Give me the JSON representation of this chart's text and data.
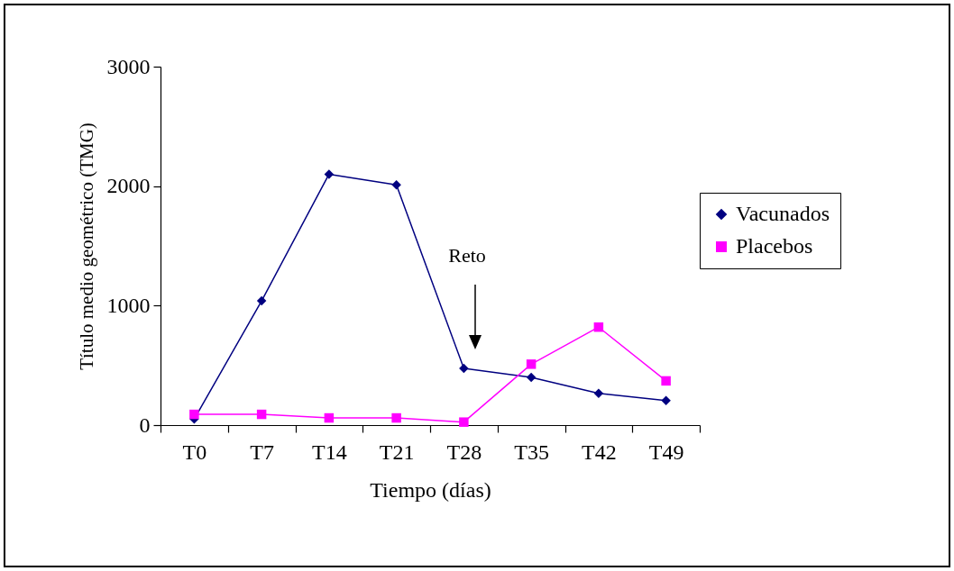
{
  "chart_data": {
    "type": "line",
    "xlabel": "Tiempo (días)",
    "ylabel": "Título medio geométrico (TMG)",
    "categories": [
      "T0",
      "T7",
      "T14",
      "T21",
      "T28",
      "T35",
      "T42",
      "T49"
    ],
    "ylim": [
      0,
      3000
    ],
    "yticks": [
      0,
      1000,
      2000,
      3000
    ],
    "grid": false,
    "legend": "right",
    "line_style": "solid",
    "annotations": [
      "Reto"
    ],
    "series": [
      {
        "name": "Vacunados",
        "color": "#000080",
        "marker": "diamond",
        "values": [
          50,
          1040,
          2100,
          2010,
          475,
          400,
          265,
          205
        ]
      },
      {
        "name": "Placebos",
        "color": "#ff00ff",
        "marker": "square",
        "values": [
          90,
          90,
          60,
          60,
          25,
          510,
          820,
          370
        ]
      }
    ]
  }
}
